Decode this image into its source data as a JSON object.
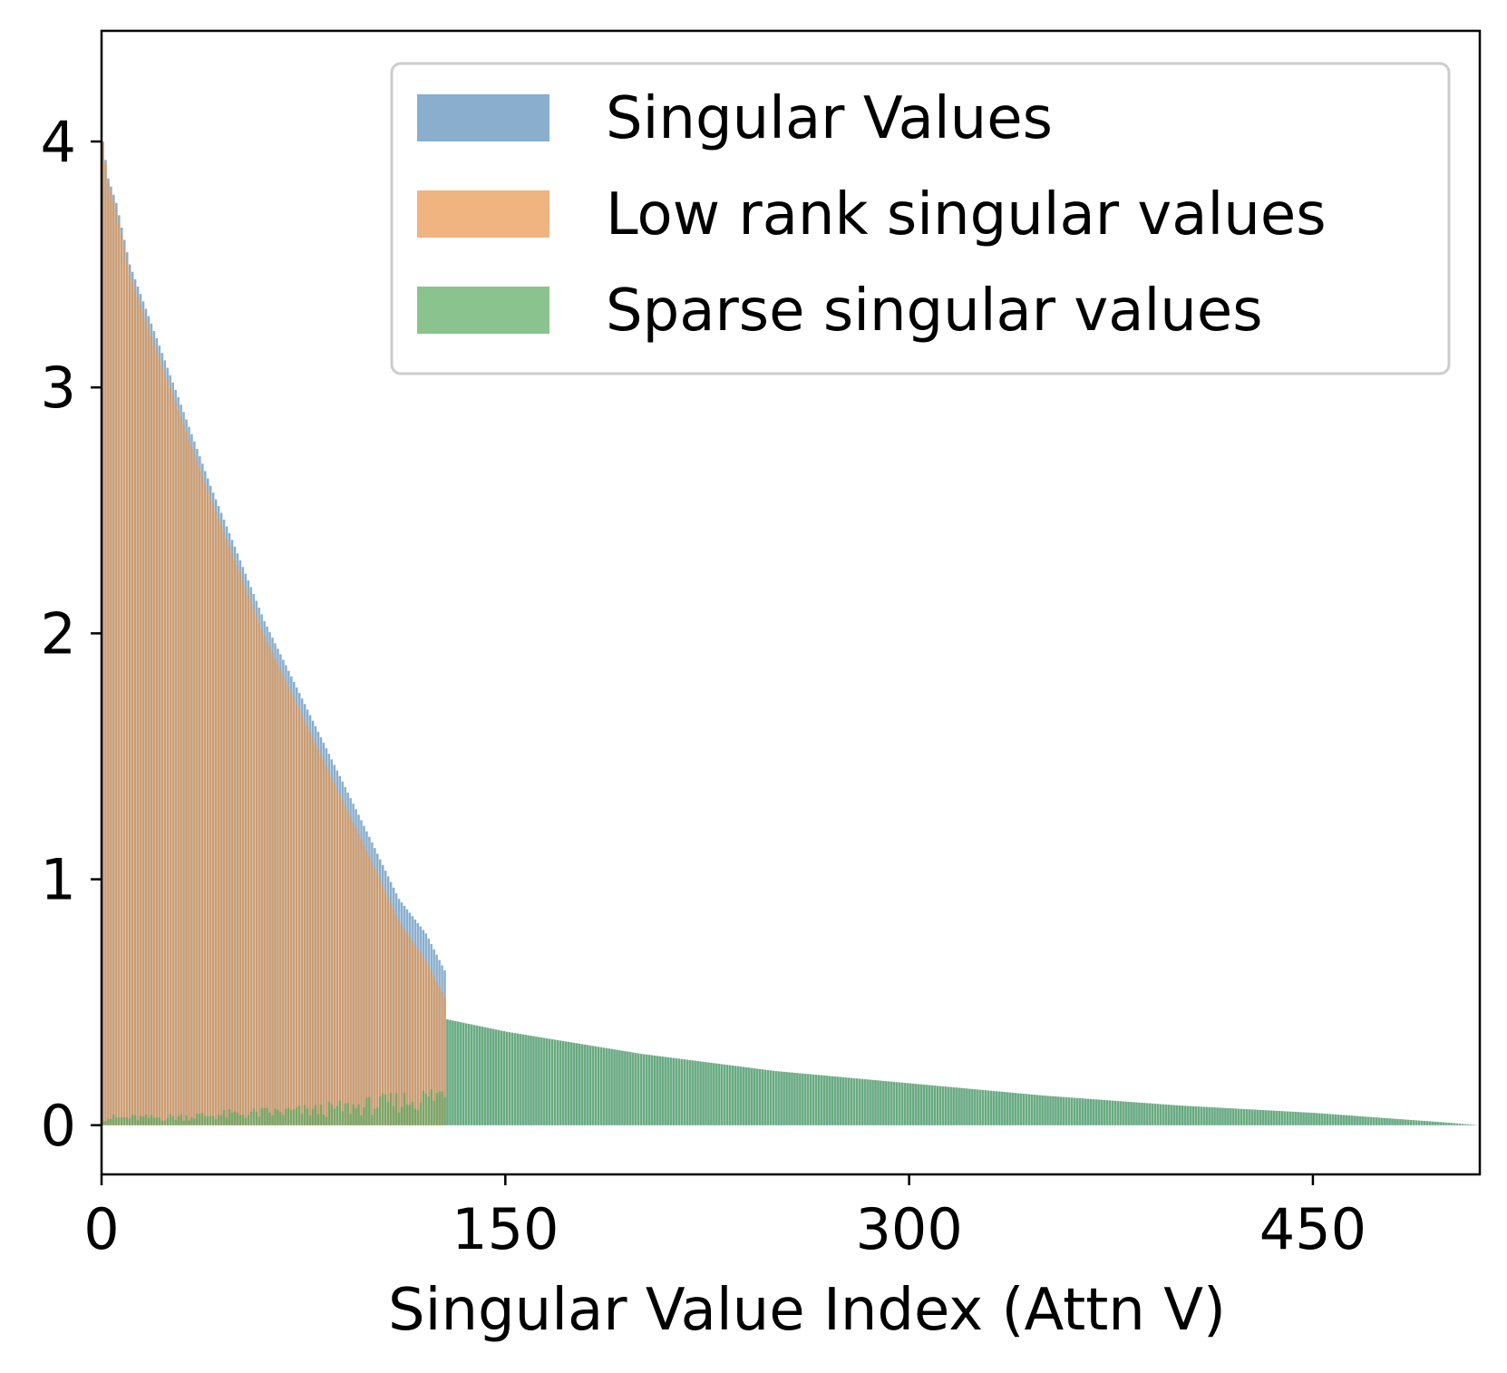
{
  "chart_data": {
    "type": "bar",
    "title": "",
    "xlabel": "Singular Value Index (Attn V)",
    "ylabel": "",
    "xlim": [
      0,
      512
    ],
    "ylim": [
      -0.2,
      4.45
    ],
    "xticks": [
      0,
      150,
      300,
      450
    ],
    "yticks": [
      0,
      1,
      2,
      3,
      4
    ],
    "grid": false,
    "legend_position": "top-right",
    "n_values": 512,
    "low_rank_cutoff": 128,
    "series": [
      {
        "name": "Singular Values",
        "color": "#4a83b4",
        "alpha": 0.65,
        "profile_x": [
          0,
          2,
          5,
          10,
          20,
          40,
          60,
          80,
          100,
          110,
          120,
          126,
          127,
          128,
          150,
          200,
          250,
          300,
          350,
          400,
          450,
          500,
          511
        ],
        "profile_y": [
          4.0,
          3.85,
          3.75,
          3.5,
          3.2,
          2.6,
          2.05,
          1.6,
          1.15,
          0.92,
          0.78,
          0.65,
          0.63,
          0.43,
          0.38,
          0.29,
          0.22,
          0.17,
          0.12,
          0.08,
          0.05,
          0.01,
          0.0
        ]
      },
      {
        "name": "Low rank singular values",
        "color": "#e8944a",
        "alpha": 0.7,
        "profile_x": [
          0,
          2,
          5,
          10,
          20,
          40,
          60,
          80,
          100,
          110,
          120,
          127
        ],
        "profile_y": [
          4.0,
          3.83,
          3.72,
          3.46,
          3.15,
          2.55,
          1.99,
          1.53,
          1.07,
          0.83,
          0.67,
          0.52
        ]
      },
      {
        "name": "Sparse singular values",
        "color": "#5aaa5e",
        "alpha": 0.7,
        "profile_x": [
          0,
          20,
          40,
          60,
          80,
          100,
          120,
          127,
          128,
          150,
          200,
          250,
          300,
          350,
          400,
          450,
          500,
          511
        ],
        "profile_y": [
          0.03,
          0.03,
          0.04,
          0.05,
          0.06,
          0.08,
          0.11,
          0.13,
          0.43,
          0.38,
          0.29,
          0.22,
          0.17,
          0.12,
          0.08,
          0.05,
          0.01,
          0.0
        ]
      }
    ]
  }
}
